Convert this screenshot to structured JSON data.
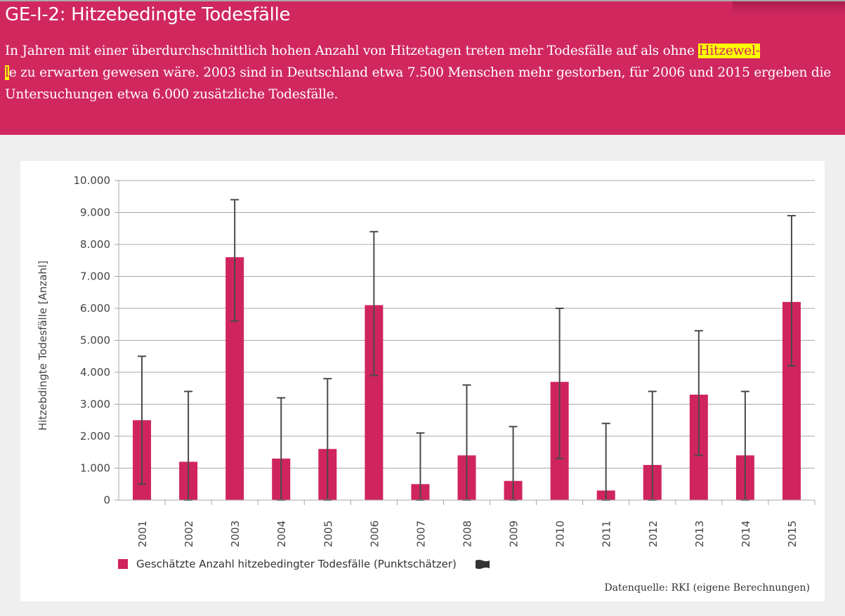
{
  "header": {
    "title": "GE-I-2: Hitzebedingte Todesfälle",
    "intro_part1": "In Jahren mit einer überdurchschnittlich hohen Anzahl von Hitzetagen treten mehr Todesfälle auf als ohne ",
    "intro_highlight_a": "Hitzewel-",
    "intro_highlight_b": "l",
    "intro_part2": "e zu erwarten gewesen wäre. 2003 sind in Deutschland etwa 7.500 Menschen mehr gestorben, für 2006 und 2015 ergeben die Untersuchungen etwa 6.000 zusätzliche Todesfälle."
  },
  "colors": {
    "brand": "#d0275f",
    "bar": "#d0245f",
    "error_bar": "#4a4a4a",
    "grid": "#a8a8a8",
    "highlight": "#ffff00"
  },
  "legend": {
    "label": "Geschätzte Anzahl hitzebedingter Todesfälle (Punktschätzer)",
    "extra_icon": "flag-icon"
  },
  "source": "Datenquelle: RKI (eigene Berechnungen)",
  "chart_data": {
    "type": "bar",
    "title": "GE-I-2: Hitzebedingte Todesfälle",
    "xlabel": "",
    "ylabel": "Hitzebdingte Todesfälle [Anzahl]",
    "ylim": [
      0,
      10000
    ],
    "grid": true,
    "legend_position": "bottom-left",
    "yticks": [
      0,
      1000,
      2000,
      3000,
      4000,
      5000,
      6000,
      7000,
      8000,
      9000,
      10000
    ],
    "ytick_labels": [
      "0",
      "1.000",
      "2.000",
      "3.000",
      "4.000",
      "5.000",
      "6.000",
      "7.000",
      "8.000",
      "9.000",
      "10.000"
    ],
    "categories": [
      "2001",
      "2002",
      "2003",
      "2004",
      "2005",
      "2006",
      "2007",
      "2008",
      "2009",
      "2010",
      "2011",
      "2012",
      "2013",
      "2014",
      "2015"
    ],
    "series": [
      {
        "name": "Geschätzte Anzahl hitzebedingter Todesfälle (Punktschätzer)",
        "values": [
          2500,
          1200,
          7600,
          1300,
          1600,
          6100,
          500,
          1400,
          600,
          3700,
          300,
          1100,
          3300,
          1400,
          6200
        ],
        "error_low": [
          500,
          0,
          5600,
          0,
          0,
          3900,
          0,
          0,
          0,
          1300,
          0,
          0,
          1400,
          0,
          4200
        ],
        "error_high": [
          4500,
          3400,
          9400,
          3200,
          3800,
          8400,
          2100,
          3600,
          2300,
          6000,
          2400,
          3400,
          5300,
          3400,
          8900
        ]
      }
    ]
  }
}
